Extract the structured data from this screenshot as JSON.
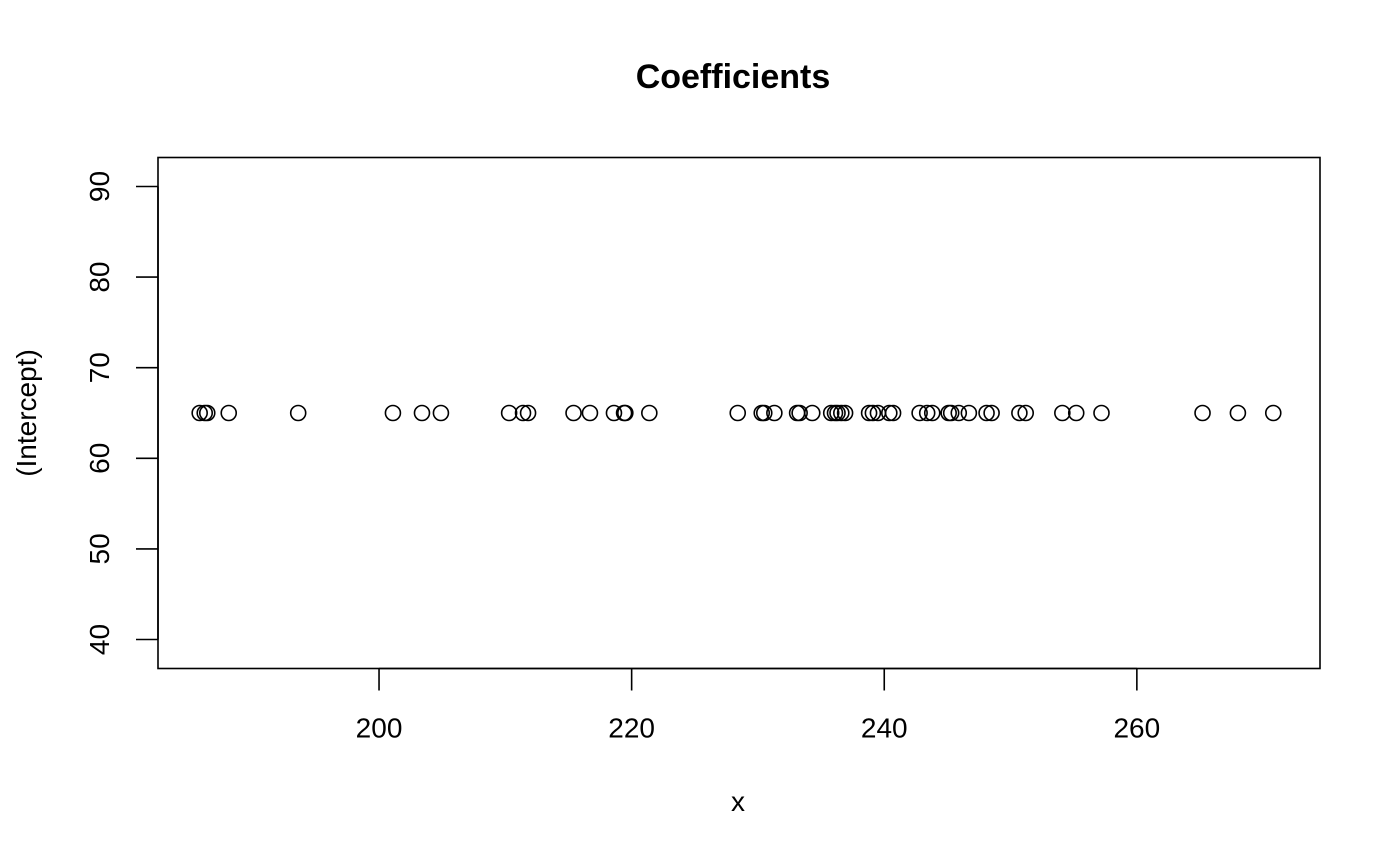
{
  "chart_data": {
    "type": "scatter",
    "title": "Coefficients",
    "xlabel": "x",
    "ylabel": "(Intercept)",
    "xlim": [
      182.5,
      274.5
    ],
    "ylim": [
      36.8,
      93.2
    ],
    "xticks": [
      200,
      220,
      240,
      260
    ],
    "yticks": [
      40,
      50,
      60,
      70,
      80,
      90
    ],
    "grid": false,
    "series": [
      {
        "x": [
          185.8,
          186.2,
          186.4,
          188.1,
          193.6,
          201.1,
          203.4,
          204.9,
          210.3,
          211.4,
          211.8,
          215.4,
          216.7,
          218.6,
          219.4,
          219.5,
          221.4,
          228.4,
          230.3,
          230.5,
          231.3,
          233.1,
          233.3,
          234.3,
          235.8,
          236.1,
          236.3,
          236.6,
          236.9,
          238.8,
          239.1,
          239.5,
          240.4,
          240.7,
          242.8,
          243.4,
          243.8,
          245.1,
          245.3,
          245.9,
          246.7,
          248.1,
          248.5,
          250.7,
          251.2,
          254.1,
          255.2,
          257.2,
          265.2,
          268.0,
          270.8
        ],
        "y": [
          65,
          65,
          65,
          65,
          65,
          65,
          65,
          65,
          65,
          65,
          65,
          65,
          65,
          65,
          65,
          65,
          65,
          65,
          65,
          65,
          65,
          65,
          65,
          65,
          65,
          65,
          65,
          65,
          65,
          65,
          65,
          65,
          65,
          65,
          65,
          65,
          65,
          65,
          65,
          65,
          65,
          65,
          65,
          65,
          65,
          65,
          65,
          65,
          65,
          65,
          65
        ]
      }
    ]
  }
}
